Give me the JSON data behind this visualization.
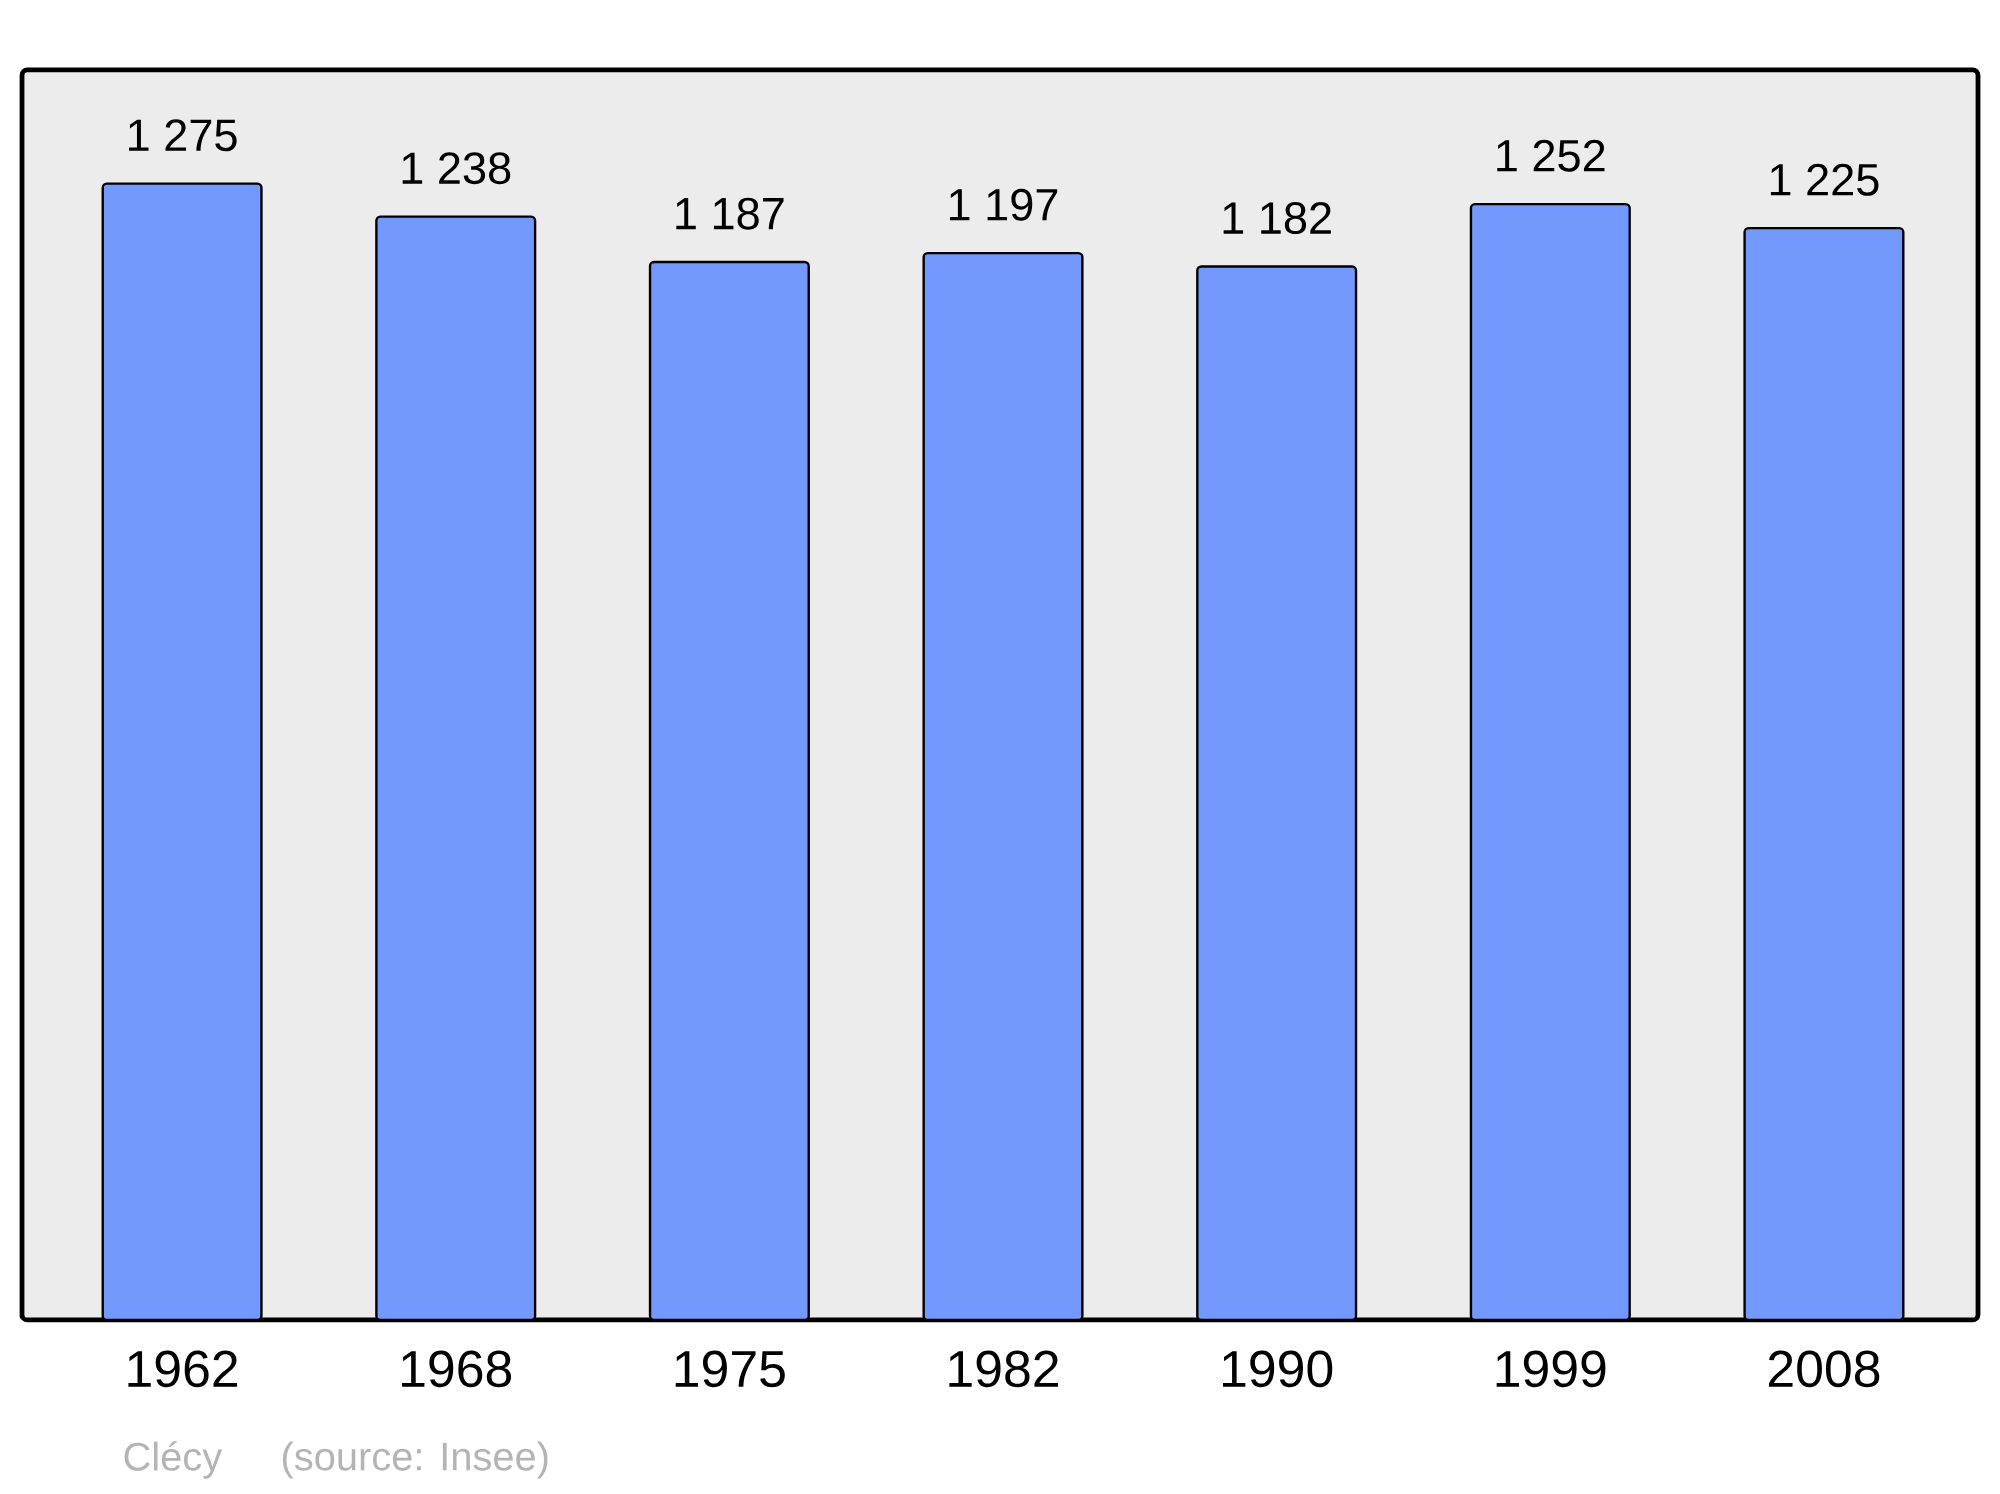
{
  "chart_data": {
    "type": "bar",
    "categories": [
      "1962",
      "1968",
      "1975",
      "1982",
      "1990",
      "1999",
      "2008"
    ],
    "values": [
      1275,
      1238,
      1187,
      1197,
      1182,
      1252,
      1225
    ],
    "value_labels": [
      "1 275",
      "1 238",
      "1 187",
      "1 197",
      "1 182",
      "1 252",
      "1 225"
    ],
    "color": "#7399ff",
    "annotations": [
      "Clécy",
      "(source: Insee)"
    ]
  }
}
